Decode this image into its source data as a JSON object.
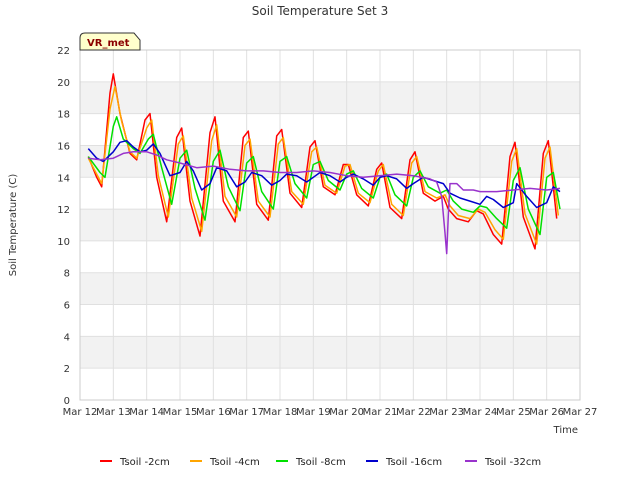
{
  "chart_data": {
    "type": "line",
    "title": "Soil Temperature Set 3",
    "xlabel": "Time",
    "ylabel": "Soil Temperature (C)",
    "badge": "VR_met",
    "xlim": [
      12,
      27
    ],
    "ylim": [
      0,
      22
    ],
    "x_ticks": [
      {
        "value": 12,
        "label": "Mar 12"
      },
      {
        "value": 13,
        "label": "Mar 13"
      },
      {
        "value": 14,
        "label": "Mar 14"
      },
      {
        "value": 15,
        "label": "Mar 15"
      },
      {
        "value": 16,
        "label": "Mar 16"
      },
      {
        "value": 17,
        "label": "Mar 17"
      },
      {
        "value": 18,
        "label": "Mar 18"
      },
      {
        "value": 19,
        "label": "Mar 19"
      },
      {
        "value": 20,
        "label": "Mar 20"
      },
      {
        "value": 21,
        "label": "Mar 21"
      },
      {
        "value": 22,
        "label": "Mar 22"
      },
      {
        "value": 23,
        "label": "Mar 23"
      },
      {
        "value": 24,
        "label": "Mar 24"
      },
      {
        "value": 25,
        "label": "Mar 25"
      },
      {
        "value": 26,
        "label": "Mar 26"
      },
      {
        "value": 27,
        "label": "Mar 27"
      }
    ],
    "y_ticks": [
      0,
      2,
      4,
      6,
      8,
      10,
      12,
      14,
      16,
      18,
      20,
      22
    ],
    "grid": true,
    "legend_position": "bottom",
    "series": [
      {
        "name": "Tsoil -2cm",
        "color": "#ff0000",
        "x": [
          12.25,
          12.5,
          12.65,
          12.9,
          13.0,
          13.2,
          13.5,
          13.7,
          13.95,
          14.1,
          14.3,
          14.6,
          14.9,
          15.05,
          15.3,
          15.6,
          15.9,
          16.05,
          16.3,
          16.65,
          16.9,
          17.05,
          17.3,
          17.65,
          17.9,
          18.05,
          18.3,
          18.65,
          18.9,
          19.05,
          19.3,
          19.65,
          19.9,
          20.05,
          20.3,
          20.65,
          20.9,
          21.05,
          21.3,
          21.65,
          21.9,
          22.05,
          22.3,
          22.65,
          22.9,
          23.05,
          23.3,
          23.65,
          23.9,
          24.1,
          24.4,
          24.65,
          24.9,
          25.05,
          25.3,
          25.65,
          25.9,
          26.05,
          26.3
        ],
        "y": [
          15.3,
          14.0,
          13.4,
          19.3,
          20.5,
          18.0,
          15.5,
          15.1,
          17.6,
          18.0,
          14.0,
          11.2,
          16.5,
          17.1,
          12.5,
          10.3,
          16.8,
          17.8,
          12.5,
          11.2,
          16.5,
          16.9,
          12.3,
          11.3,
          16.6,
          17.0,
          13.0,
          12.1,
          15.9,
          16.3,
          13.4,
          12.9,
          14.8,
          14.8,
          12.9,
          12.2,
          14.5,
          14.9,
          12.1,
          11.4,
          15.1,
          15.6,
          13.0,
          12.5,
          12.8,
          12.0,
          11.4,
          11.2,
          11.9,
          11.7,
          10.4,
          9.8,
          15.3,
          16.2,
          11.5,
          9.5,
          15.5,
          16.3,
          11.4
        ]
      },
      {
        "name": "Tsoil -4cm",
        "color": "#ffa500",
        "x": [
          12.25,
          12.5,
          12.65,
          12.9,
          13.05,
          13.25,
          13.5,
          13.7,
          14.0,
          14.15,
          14.35,
          14.65,
          14.95,
          15.1,
          15.35,
          15.65,
          15.95,
          16.1,
          16.35,
          16.7,
          16.95,
          17.1,
          17.35,
          17.7,
          17.95,
          18.1,
          18.35,
          18.7,
          18.95,
          19.1,
          19.35,
          19.7,
          19.95,
          20.1,
          20.35,
          20.7,
          20.95,
          21.1,
          21.35,
          21.7,
          21.95,
          22.1,
          22.35,
          22.7,
          22.95,
          23.1,
          23.35,
          23.7,
          23.95,
          24.15,
          24.45,
          24.7,
          24.95,
          25.1,
          25.35,
          25.7,
          25.95,
          26.1,
          26.35
        ],
        "y": [
          15.2,
          14.2,
          13.6,
          18.3,
          19.7,
          17.5,
          15.6,
          15.2,
          17.1,
          17.6,
          14.1,
          11.5,
          16.1,
          16.6,
          12.7,
          10.6,
          16.3,
          17.3,
          12.8,
          11.5,
          16.0,
          16.4,
          12.5,
          11.5,
          16.1,
          16.5,
          13.1,
          12.3,
          15.6,
          15.9,
          13.5,
          13.0,
          14.7,
          14.8,
          13.0,
          12.4,
          14.4,
          14.8,
          12.3,
          11.6,
          14.9,
          15.3,
          13.1,
          12.7,
          12.9,
          12.2,
          11.6,
          11.4,
          12.0,
          11.8,
          10.7,
          10.1,
          15.0,
          15.8,
          11.7,
          9.8,
          15.2,
          15.9,
          11.6
        ]
      },
      {
        "name": "Tsoil -8cm",
        "color": "#00e000",
        "x": [
          12.25,
          12.6,
          12.75,
          13.0,
          13.1,
          13.3,
          13.6,
          13.8,
          14.05,
          14.2,
          14.45,
          14.75,
          15.0,
          15.2,
          15.45,
          15.75,
          16.0,
          16.2,
          16.45,
          16.8,
          17.0,
          17.2,
          17.45,
          17.8,
          18.0,
          18.2,
          18.45,
          18.8,
          19.0,
          19.2,
          19.45,
          19.8,
          20.0,
          20.2,
          20.45,
          20.8,
          21.0,
          21.2,
          21.45,
          21.8,
          22.0,
          22.2,
          22.45,
          22.8,
          23.0,
          23.2,
          23.45,
          23.8,
          24.0,
          24.2,
          24.5,
          24.8,
          25.0,
          25.2,
          25.45,
          25.8,
          26.0,
          26.2,
          26.4
        ],
        "y": [
          15.3,
          14.3,
          14.0,
          17.2,
          17.8,
          16.4,
          15.8,
          15.5,
          16.4,
          16.7,
          14.6,
          12.3,
          15.2,
          15.7,
          13.3,
          11.3,
          15.0,
          15.7,
          13.4,
          11.9,
          14.9,
          15.3,
          13.1,
          12.0,
          15.0,
          15.3,
          13.6,
          12.7,
          14.8,
          15.0,
          13.8,
          13.2,
          14.2,
          14.4,
          13.3,
          12.7,
          14.0,
          14.2,
          12.9,
          12.2,
          14.0,
          14.4,
          13.4,
          13.0,
          13.2,
          12.5,
          12.0,
          11.8,
          12.2,
          12.1,
          11.4,
          10.8,
          13.8,
          14.6,
          12.0,
          10.4,
          14.0,
          14.3,
          12.0
        ]
      },
      {
        "name": "Tsoil -16cm",
        "color": "#0000cc",
        "x": [
          12.25,
          12.5,
          12.7,
          13.0,
          13.2,
          13.4,
          13.6,
          13.8,
          14.0,
          14.2,
          14.4,
          14.7,
          15.0,
          15.2,
          15.4,
          15.65,
          15.9,
          16.1,
          16.4,
          16.7,
          16.95,
          17.15,
          17.45,
          17.75,
          18.0,
          18.2,
          18.5,
          18.8,
          19.0,
          19.2,
          19.5,
          19.8,
          20.0,
          20.2,
          20.5,
          20.8,
          21.0,
          21.2,
          21.5,
          21.8,
          22.0,
          22.3,
          22.6,
          22.9,
          23.1,
          23.4,
          23.7,
          24.0,
          24.2,
          24.4,
          24.7,
          25.0,
          25.1,
          25.4,
          25.7,
          26.0,
          26.2,
          26.4
        ],
        "y": [
          15.8,
          15.2,
          15.0,
          15.6,
          16.2,
          16.3,
          15.9,
          15.6,
          15.7,
          16.1,
          15.5,
          14.1,
          14.3,
          15.0,
          14.4,
          13.2,
          13.6,
          14.6,
          14.4,
          13.4,
          13.7,
          14.3,
          14.1,
          13.5,
          13.8,
          14.2,
          14.1,
          13.7,
          14.0,
          14.3,
          14.1,
          13.7,
          14.0,
          14.2,
          13.9,
          13.5,
          14.0,
          14.1,
          13.9,
          13.3,
          13.6,
          14.0,
          13.8,
          13.6,
          13.0,
          12.7,
          12.5,
          12.3,
          12.8,
          12.6,
          12.1,
          12.4,
          13.6,
          12.8,
          12.1,
          12.4,
          13.4,
          13.1
        ]
      },
      {
        "name": "Tsoil -32cm",
        "color": "#9933cc",
        "x": [
          12.25,
          12.6,
          13.0,
          13.3,
          13.6,
          14.0,
          14.3,
          14.6,
          15.0,
          15.5,
          16.0,
          16.5,
          17.0,
          17.5,
          18.0,
          18.5,
          19.0,
          19.5,
          20.0,
          20.5,
          21.0,
          21.5,
          22.0,
          22.5,
          22.7,
          22.85,
          22.95,
          23.0,
          23.05,
          23.1,
          23.3,
          23.5,
          23.8,
          24.0,
          24.5,
          25.0,
          25.5,
          26.0,
          26.4
        ],
        "y": [
          15.2,
          15.1,
          15.2,
          15.5,
          15.6,
          15.6,
          15.4,
          15.1,
          14.9,
          14.6,
          14.7,
          14.5,
          14.4,
          14.4,
          14.3,
          14.3,
          14.4,
          14.3,
          14.1,
          14.0,
          14.1,
          14.2,
          14.1,
          13.9,
          13.7,
          12.8,
          10.5,
          9.2,
          11.6,
          13.6,
          13.6,
          13.2,
          13.2,
          13.1,
          13.1,
          13.2,
          13.3,
          13.2,
          13.3
        ]
      }
    ]
  }
}
